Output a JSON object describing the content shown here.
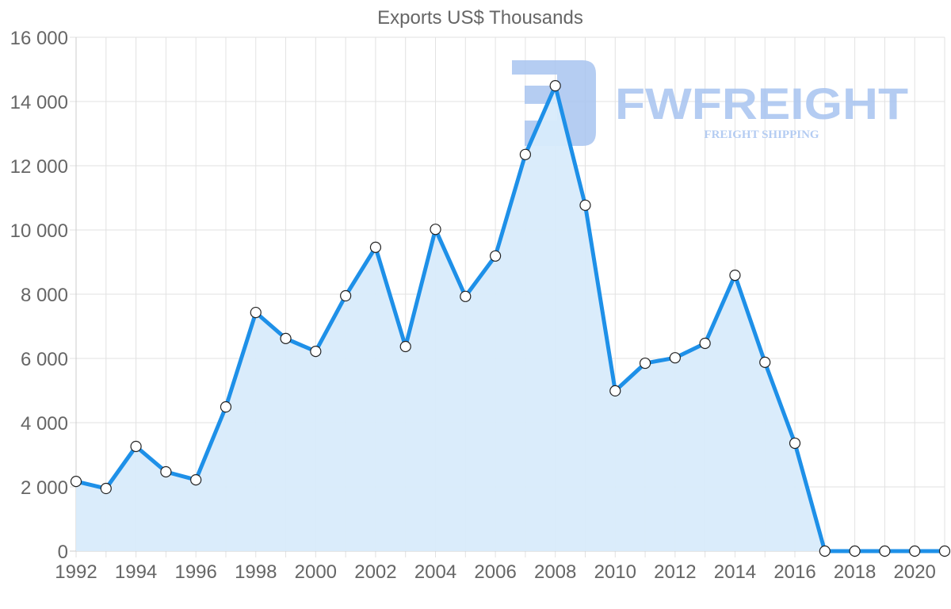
{
  "chart_data": {
    "type": "line",
    "title": "Exports US$ Thousands",
    "xlabel": "",
    "ylabel": "",
    "ylim": [
      0,
      16000
    ],
    "grid": true,
    "legend": "none",
    "fill": true,
    "y_ticks": [
      0,
      2000,
      4000,
      6000,
      8000,
      10000,
      12000,
      14000,
      16000
    ],
    "y_tick_labels": [
      "0",
      "2 000",
      "4 000",
      "6 000",
      "8 000",
      "10 000",
      "12 000",
      "14 000",
      "16 000"
    ],
    "x_tick_labels": [
      "1992",
      "1994",
      "1996",
      "1998",
      "2000",
      "2002",
      "2004",
      "2006",
      "2008",
      "2010",
      "2012",
      "2014",
      "2016",
      "2018",
      "2020"
    ],
    "x": [
      1992,
      1993,
      1994,
      1995,
      1996,
      1997,
      1998,
      1999,
      2000,
      2001,
      2002,
      2003,
      2004,
      2005,
      2006,
      2007,
      2008,
      2009,
      2010,
      2011,
      2012,
      2013,
      2014,
      2015,
      2016,
      2017,
      2018,
      2019,
      2020,
      2021
    ],
    "series": [
      {
        "name": "Exports US$ Thousands",
        "values": [
          2170,
          1950,
          3260,
          2470,
          2220,
          4490,
          7430,
          6620,
          6220,
          7950,
          9460,
          6370,
          10020,
          7930,
          9190,
          12350,
          14490,
          10770,
          4990,
          5850,
          6020,
          6470,
          8590,
          5880,
          3360,
          0,
          0,
          0,
          0,
          0
        ]
      }
    ]
  },
  "colors": {
    "line": "#1e90e8",
    "fill": "#d8ebfb",
    "grid": "#e2e2e2",
    "axis_text": "#666666",
    "title_text": "#666666",
    "point_fill": "#ffffff",
    "point_stroke": "#222222",
    "watermark": "#a8c4f0"
  },
  "watermark": {
    "brand": "FWFREIGHT",
    "tagline": "FREIGHT SHIPPING"
  }
}
